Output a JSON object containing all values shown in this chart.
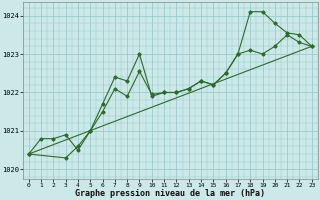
{
  "xlabel": "Graphe pression niveau de la mer (hPa)",
  "background_color": "#cce8e8",
  "grid_color": "#99cccc",
  "line_color": "#2d6a2d",
  "marker_color": "#2d6a2d",
  "ylim": [
    1019.75,
    1024.35
  ],
  "xlim": [
    -0.5,
    23.5
  ],
  "yticks": [
    1020,
    1021,
    1022,
    1023,
    1024
  ],
  "xticks": [
    0,
    1,
    2,
    3,
    4,
    5,
    6,
    7,
    8,
    9,
    10,
    11,
    12,
    13,
    14,
    15,
    16,
    17,
    18,
    19,
    20,
    21,
    22,
    23
  ],
  "series": [
    {
      "x": [
        0,
        1,
        2,
        3,
        4,
        5,
        6,
        7,
        8,
        9,
        10,
        11,
        12,
        13,
        14,
        15,
        16,
        17,
        18,
        19,
        20,
        21,
        22,
        23
      ],
      "y": [
        1020.4,
        1020.8,
        1020.8,
        1020.9,
        1020.5,
        1021.0,
        1021.7,
        1022.4,
        1022.3,
        1023.0,
        1021.9,
        1022.0,
        1022.0,
        1022.1,
        1022.3,
        1022.2,
        1022.5,
        1023.0,
        1023.1,
        1023.0,
        1023.2,
        1023.5,
        1023.3,
        1023.2
      ]
    },
    {
      "x": [
        0,
        3,
        4,
        5,
        6,
        7,
        8,
        9,
        10,
        11,
        12,
        13,
        14,
        15,
        16,
        17,
        18,
        19,
        20,
        21,
        22,
        23
      ],
      "y": [
        1020.4,
        1020.3,
        1020.6,
        1021.0,
        1021.5,
        1022.1,
        1021.9,
        1022.55,
        1021.95,
        1022.0,
        1022.0,
        1022.1,
        1022.3,
        1022.2,
        1022.5,
        1023.0,
        1024.1,
        1024.1,
        1023.8,
        1023.55,
        1023.5,
        1023.2
      ]
    },
    {
      "x": [
        0,
        23
      ],
      "y": [
        1020.4,
        1023.2
      ]
    }
  ]
}
